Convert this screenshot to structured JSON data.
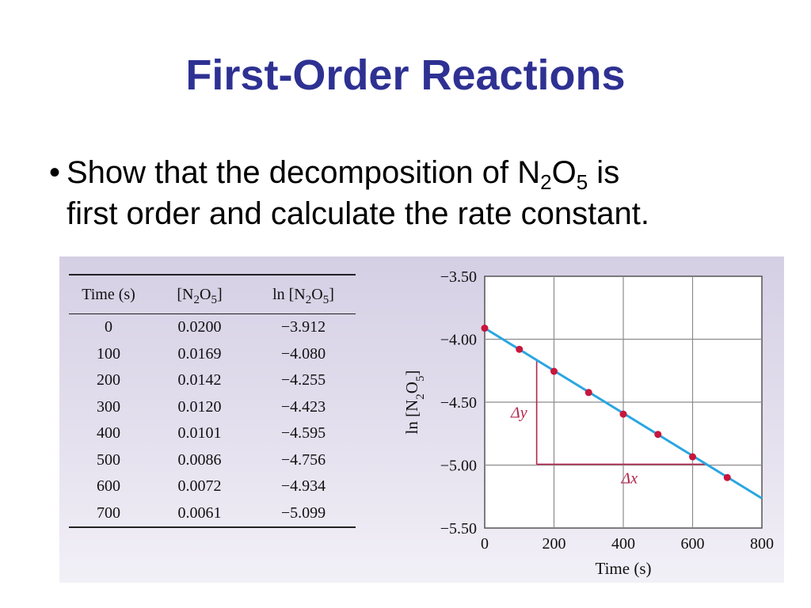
{
  "slide": {
    "title": "First-Order Reactions",
    "title_color": "#2e3192",
    "bullet": {
      "marker": "•",
      "line1_part1": "Show that the decomposition of N",
      "sub_a": "2",
      "mid": "O",
      "sub_b": "5",
      "line1_part2": " is",
      "line2": "first order and calculate the rate constant."
    }
  },
  "table": {
    "headers": {
      "time": "Time (s)",
      "conc_open": "[N",
      "conc_sub1": "2",
      "conc_mid": "O",
      "conc_sub2": "5",
      "conc_close": "]",
      "ln_open": "ln [N",
      "ln_sub1": "2",
      "ln_mid": "O",
      "ln_sub2": "5",
      "ln_close": "]"
    },
    "rows": [
      {
        "time": "0",
        "conc": "0.0200",
        "ln": "−3.912"
      },
      {
        "time": "100",
        "conc": "0.0169",
        "ln": "−4.080"
      },
      {
        "time": "200",
        "conc": "0.0142",
        "ln": "−4.255"
      },
      {
        "time": "300",
        "conc": "0.0120",
        "ln": "−4.423"
      },
      {
        "time": "400",
        "conc": "0.0101",
        "ln": "−4.595"
      },
      {
        "time": "500",
        "conc": "0.0086",
        "ln": "−4.756"
      },
      {
        "time": "600",
        "conc": "0.0072",
        "ln": "−4.934"
      },
      {
        "time": "700",
        "conc": "0.0061",
        "ln": "−5.099"
      }
    ]
  },
  "chart_data": {
    "type": "scatter",
    "x": [
      0,
      100,
      200,
      300,
      400,
      500,
      600,
      700
    ],
    "y": [
      -3.912,
      -4.08,
      -4.255,
      -4.423,
      -4.595,
      -4.756,
      -4.934,
      -5.099
    ],
    "xlim": [
      0,
      800
    ],
    "ylim": [
      -5.5,
      -3.5
    ],
    "xticks": [
      0,
      200,
      400,
      600,
      800
    ],
    "xtick_labels": [
      "0",
      "200",
      "400",
      "600",
      "800"
    ],
    "yticks": [
      -3.5,
      -4.0,
      -4.5,
      -5.0,
      -5.5
    ],
    "ytick_labels": [
      "−3.50",
      "−4.00",
      "−4.50",
      "−5.00",
      "−5.50"
    ],
    "xlabel": "Time (s)",
    "ylabel": {
      "open": "ln [N",
      "sub1": "2",
      "mid": "O",
      "sub2": "5",
      "close": "]"
    },
    "grid": true,
    "fit_line": {
      "slope": -0.00169,
      "intercept": -3.912,
      "x_range": [
        0,
        800
      ]
    },
    "slope_triangle": {
      "x_start": 150,
      "x_end": 640,
      "dy_label": "Δy",
      "dx_label": "Δx"
    },
    "colors": {
      "point": "#c8163c",
      "fit_line": "#2aa6e0",
      "triangle": "#b3264a",
      "grid": "#8c8c8c"
    }
  }
}
